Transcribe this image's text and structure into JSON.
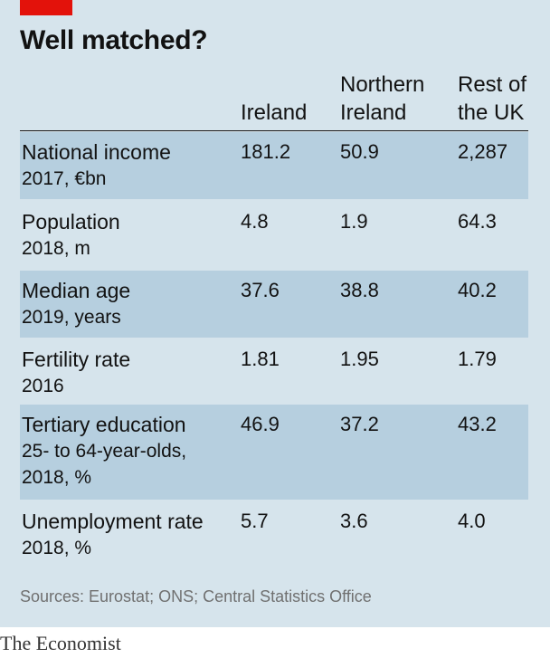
{
  "chart_data": {
    "type": "table",
    "title": "Well matched?",
    "columns": [
      "Ireland",
      "Northern Ireland",
      "Rest of the UK"
    ],
    "rows": [
      {
        "label": "National income",
        "sub": "2017, €bn",
        "values": [
          "181.2",
          "50.9",
          "2,287"
        ]
      },
      {
        "label": "Population",
        "sub": "2018, m",
        "values": [
          "4.8",
          "1.9",
          "64.3"
        ]
      },
      {
        "label": "Median age",
        "sub": "2019, years",
        "values": [
          "37.6",
          "38.8",
          "40.2"
        ]
      },
      {
        "label": "Fertility rate",
        "sub": "2016",
        "values": [
          "1.81",
          "1.95",
          "1.79"
        ]
      },
      {
        "label": "Tertiary education",
        "sub": "25- to 64-year-olds, 2018, %",
        "values": [
          "46.9",
          "37.2",
          "43.2"
        ]
      },
      {
        "label": "Unemployment rate",
        "sub": "2018, %",
        "values": [
          "5.7",
          "3.6",
          "4.0"
        ]
      }
    ],
    "source": "Sources: Eurostat; ONS; Central Statistics Office"
  },
  "brand": "The Economist",
  "colors": {
    "accent": "#e3120b",
    "panel_background": "#d6e4ec",
    "row_shade": "#b6cfdf"
  }
}
